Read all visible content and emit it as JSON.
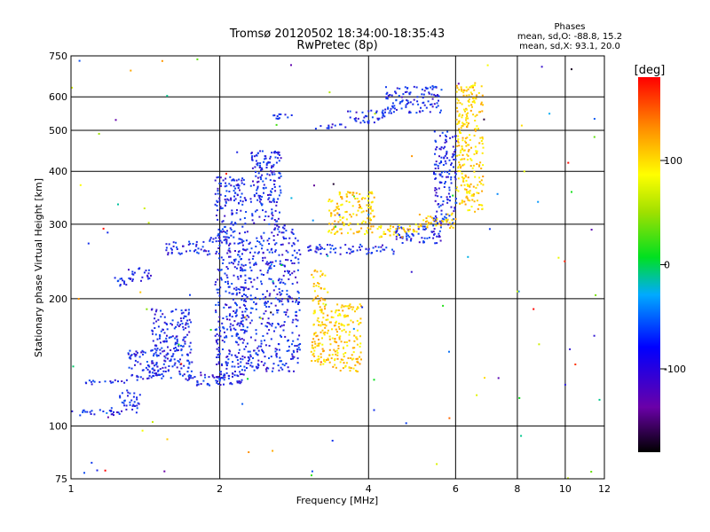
{
  "chart_data": {
    "type": "scatter",
    "title": "Tromsø 20120502 18:34:00-18:35:43",
    "subtitle": "RwPretec (8p)",
    "xlabel": "Frequency [MHz]",
    "ylabel": "Stationary phase Virtual Height [km]",
    "x_scale": "log",
    "y_scale": "log",
    "xlim": [
      1,
      12
    ],
    "ylim": [
      75,
      750
    ],
    "x_ticks": [
      1,
      2,
      4,
      6,
      8,
      10,
      12
    ],
    "y_ticks": [
      75,
      100,
      200,
      300,
      400,
      500,
      600,
      750
    ],
    "grid": true,
    "phases_title": "Phases",
    "phases_line1": "mean, sd,O: -88.8, 15.2",
    "phases_line2": "mean, sd,X: 93.1, 20.0",
    "colorbar": {
      "label": "[deg]",
      "range": [
        -180,
        180
      ],
      "ticks": [
        100,
        0,
        -100
      ]
    },
    "clusters": [
      {
        "f": [
          1.0,
          1.25
        ],
        "h": [
          106,
          110
        ],
        "phase": -100
      },
      {
        "f": [
          1.25,
          1.38
        ],
        "h": [
          108,
          122
        ],
        "phase": -100
      },
      {
        "f": [
          1.0,
          1.3
        ],
        "h": [
          126,
          129
        ],
        "phase": -100
      },
      {
        "f": [
          1.3,
          1.5
        ],
        "h": [
          128,
          152
        ],
        "phase": -100
      },
      {
        "f": [
          1.45,
          1.75
        ],
        "h": [
          130,
          190
        ],
        "phase": -100
      },
      {
        "f": [
          1.7,
          2.05
        ],
        "h": [
          125,
          135
        ],
        "phase": -100
      },
      {
        "f": [
          1.95,
          2.25
        ],
        "h": [
          125,
          390
        ],
        "phase": -100
      },
      {
        "f": [
          2.2,
          2.9
        ],
        "h": [
          135,
          300
        ],
        "phase": -100
      },
      {
        "f": [
          2.3,
          2.65
        ],
        "h": [
          300,
          450
        ],
        "phase": -100
      },
      {
        "f": [
          1.55,
          1.9
        ],
        "h": [
          255,
          275
        ],
        "phase": -100
      },
      {
        "f": [
          1.9,
          2.2
        ],
        "h": [
          270,
          280
        ],
        "phase": -100
      },
      {
        "f": [
          1.22,
          1.3
        ],
        "h": [
          215,
          225
        ],
        "phase": -100
      },
      {
        "f": [
          1.3,
          1.45
        ],
        "h": [
          220,
          238
        ],
        "phase": -100
      },
      {
        "f": [
          2.55,
          2.8
        ],
        "h": [
          535,
          550
        ],
        "phase": -100
      },
      {
        "f": [
          3.1,
          3.6
        ],
        "h": [
          505,
          520
        ],
        "phase": -100
      },
      {
        "f": [
          3.6,
          4.3
        ],
        "h": [
          520,
          560
        ],
        "phase": -100
      },
      {
        "f": [
          4.3,
          5.6
        ],
        "h": [
          550,
          640
        ],
        "phase": -100
      },
      {
        "f": [
          3.0,
          4.5
        ],
        "h": [
          255,
          270
        ],
        "phase": -100
      },
      {
        "f": [
          4.5,
          5.6
        ],
        "h": [
          270,
          300
        ],
        "phase": -100
      },
      {
        "f": [
          5.4,
          6.0
        ],
        "h": [
          300,
          500
        ],
        "phase": -100
      },
      {
        "f": [
          3.3,
          4.1
        ],
        "h": [
          285,
          360
        ],
        "phase": 120
      },
      {
        "f": [
          4.1,
          5.0
        ],
        "h": [
          280,
          300
        ],
        "phase": 120
      },
      {
        "f": [
          5.0,
          6.0
        ],
        "h": [
          295,
          320
        ],
        "phase": 120
      },
      {
        "f": [
          6.0,
          6.8
        ],
        "h": [
          320,
          650
        ],
        "phase": 120
      },
      {
        "f": [
          3.05,
          3.3
        ],
        "h": [
          140,
          235
        ],
        "phase": 120
      },
      {
        "f": [
          3.3,
          3.85
        ],
        "h": [
          135,
          195
        ],
        "phase": 120
      }
    ]
  }
}
